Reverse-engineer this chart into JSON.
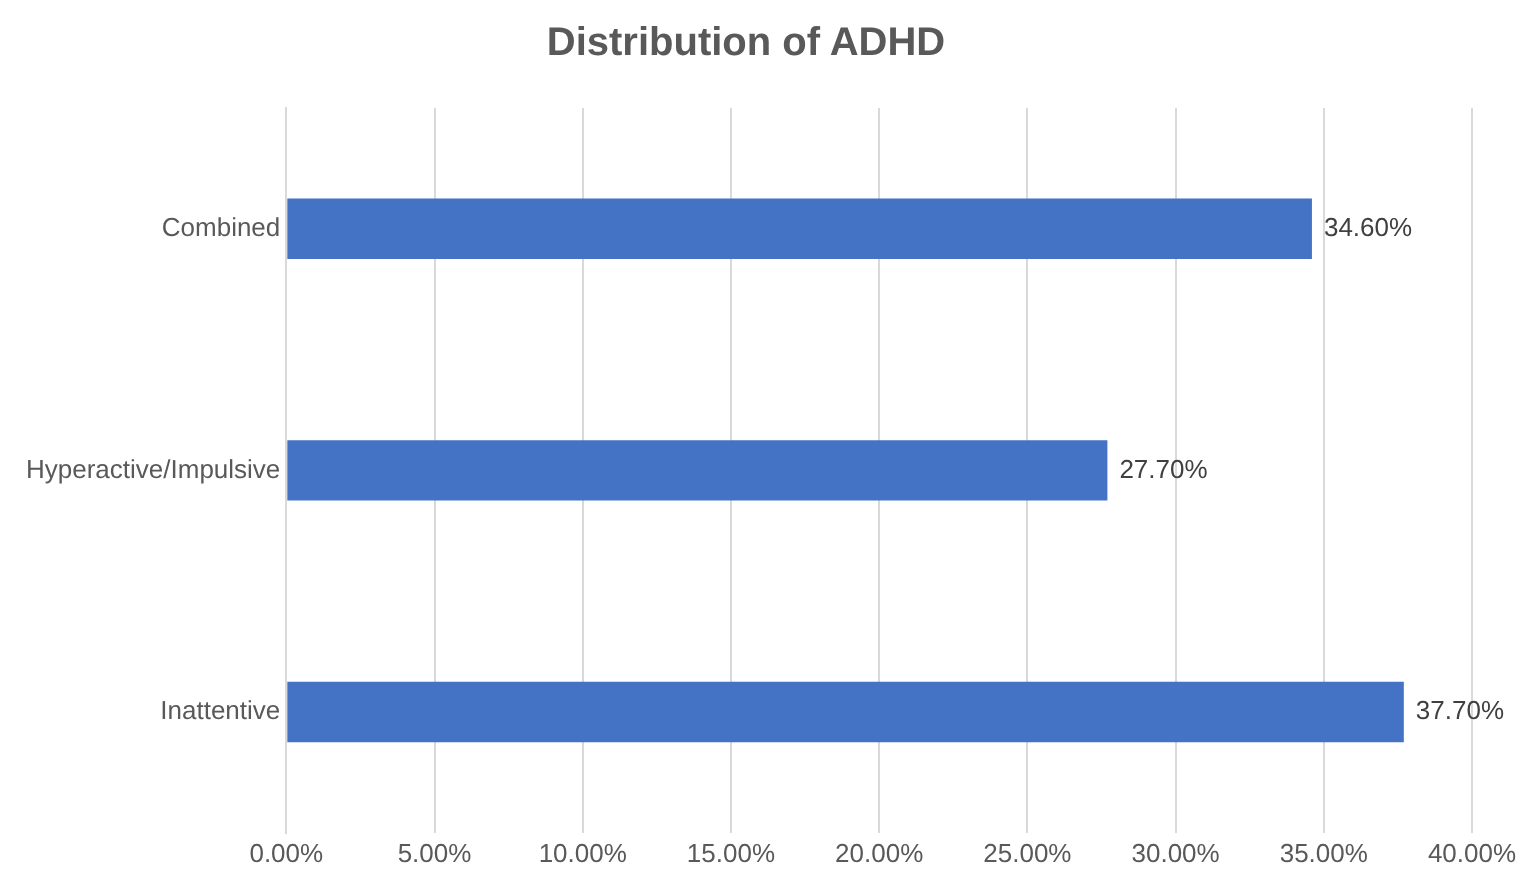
{
  "chart_data": {
    "type": "bar",
    "orientation": "horizontal",
    "title": "Distribution of ADHD",
    "categories": [
      "Combined",
      "Hyperactive/Impulsive",
      "Inattentive"
    ],
    "values": [
      34.6,
      27.7,
      37.7
    ],
    "value_labels": [
      "34.60%",
      "27.70%",
      "37.70%"
    ],
    "color": "#4472c4",
    "xlim": [
      0,
      40
    ],
    "xticks": [
      {
        "value": 0,
        "label": "0.00%"
      },
      {
        "value": 5,
        "label": "5.00%"
      },
      {
        "value": 10,
        "label": "10.00%"
      },
      {
        "value": 15,
        "label": "15.00%"
      },
      {
        "value": 20,
        "label": "20.00%"
      },
      {
        "value": 25,
        "label": "25.00%"
      },
      {
        "value": 30,
        "label": "30.00%"
      },
      {
        "value": 35,
        "label": "35.00%"
      },
      {
        "value": 40,
        "label": "40.00%"
      }
    ],
    "grid": "x",
    "legend": false
  }
}
